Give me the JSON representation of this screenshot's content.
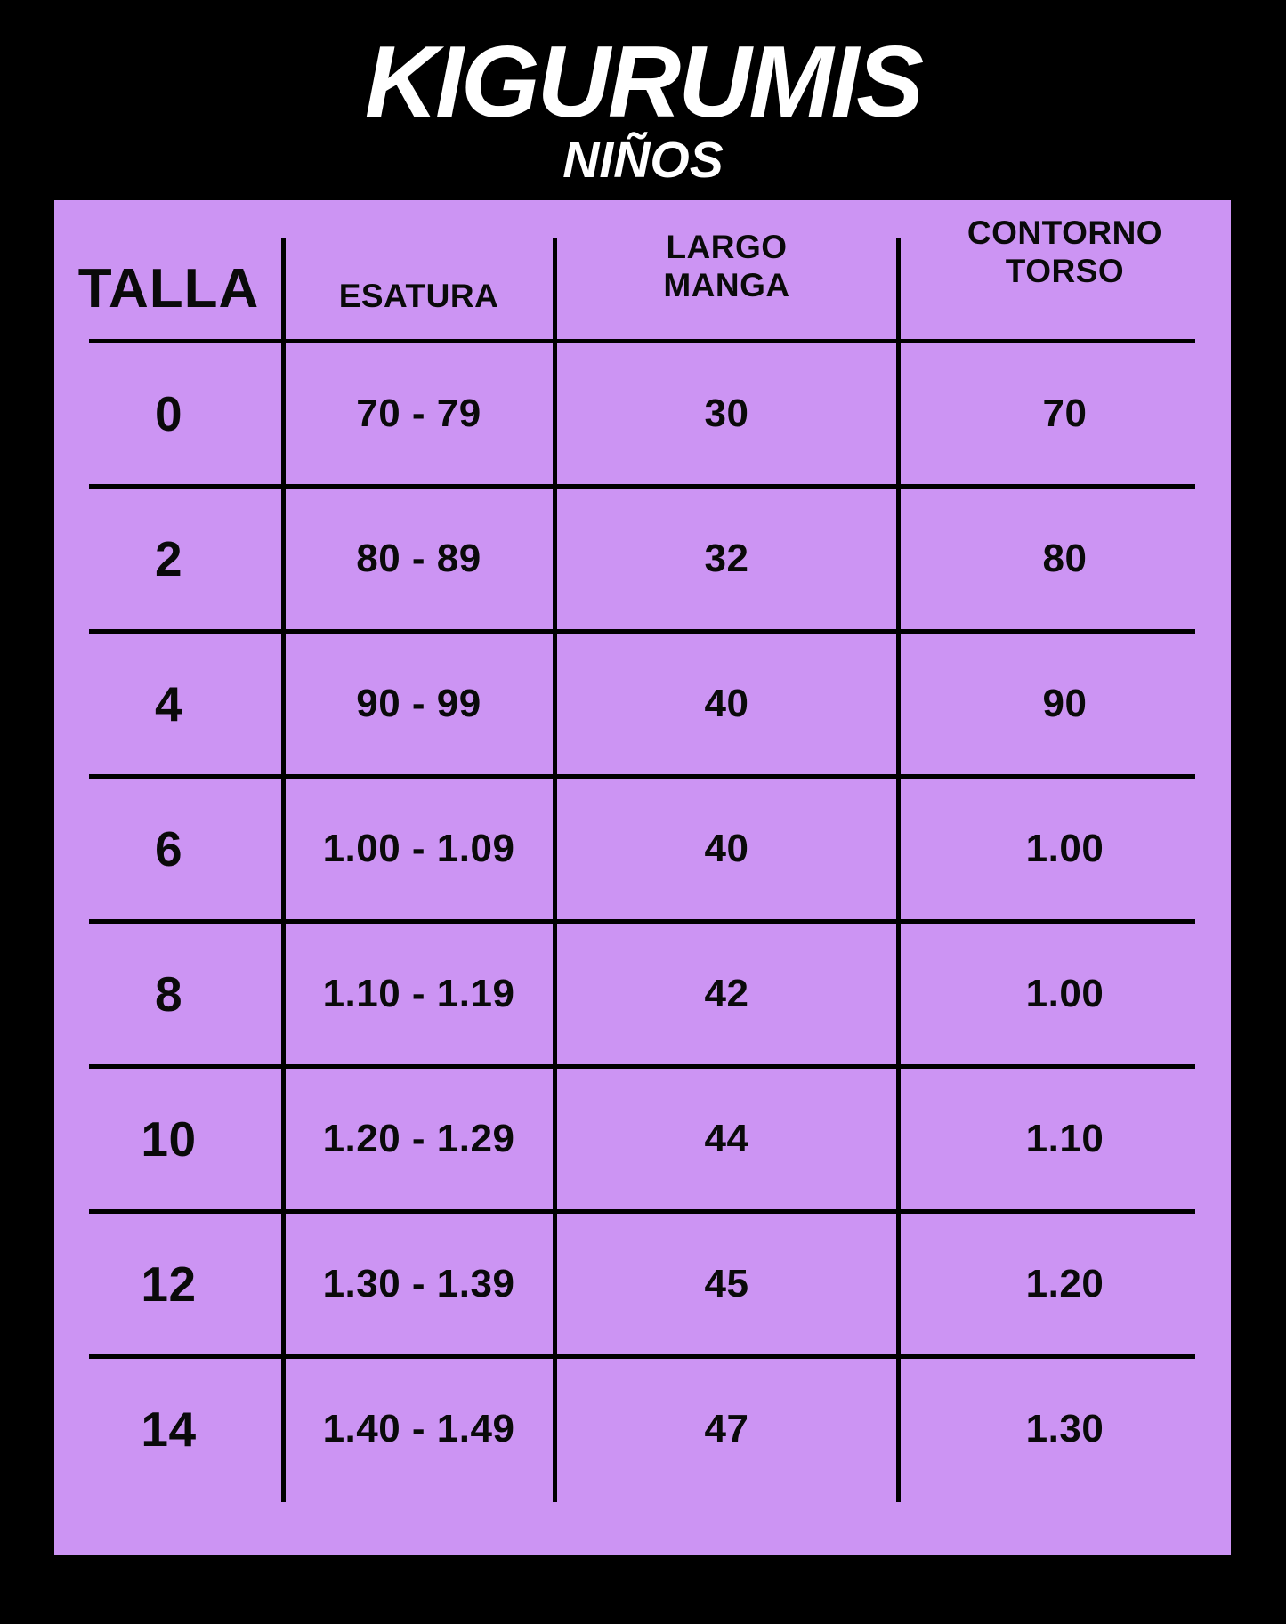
{
  "page": {
    "background_color": "#000000",
    "panel_color": "#cc94f3",
    "text_color": "#0a0a0a",
    "title_color": "#ffffff"
  },
  "header": {
    "title": "KIGURUMIS",
    "subtitle": "NIÑOS"
  },
  "table": {
    "headers": [
      {
        "lines": [
          "TALLA"
        ]
      },
      {
        "lines": [
          "ESATURA"
        ]
      },
      {
        "lines": [
          "LARGO",
          "MANGA"
        ]
      },
      {
        "lines": [
          "CONTORNO",
          "TORSO"
        ]
      }
    ]
  },
  "chart_data": {
    "type": "table",
    "title": "KIGURUMIS",
    "subtitle": "NIÑOS",
    "columns": [
      "TALLA",
      "ESATURA",
      "LARGO MANGA",
      "CONTORNO TORSO"
    ],
    "rows": [
      [
        "0",
        "70 - 79",
        "30",
        "70"
      ],
      [
        "2",
        "80 - 89",
        "32",
        "80"
      ],
      [
        "4",
        "90 - 99",
        "40",
        "90"
      ],
      [
        "6",
        "1.00 - 1.09",
        "40",
        "1.00"
      ],
      [
        "8",
        "1.10 - 1.19",
        "42",
        "1.00"
      ],
      [
        "10",
        "1.20 - 1.29",
        "44",
        "1.10"
      ],
      [
        "12",
        "1.30 - 1.39",
        "45",
        "1.20"
      ],
      [
        "14",
        "1.40 - 1.49",
        "47",
        "1.30"
      ]
    ]
  }
}
